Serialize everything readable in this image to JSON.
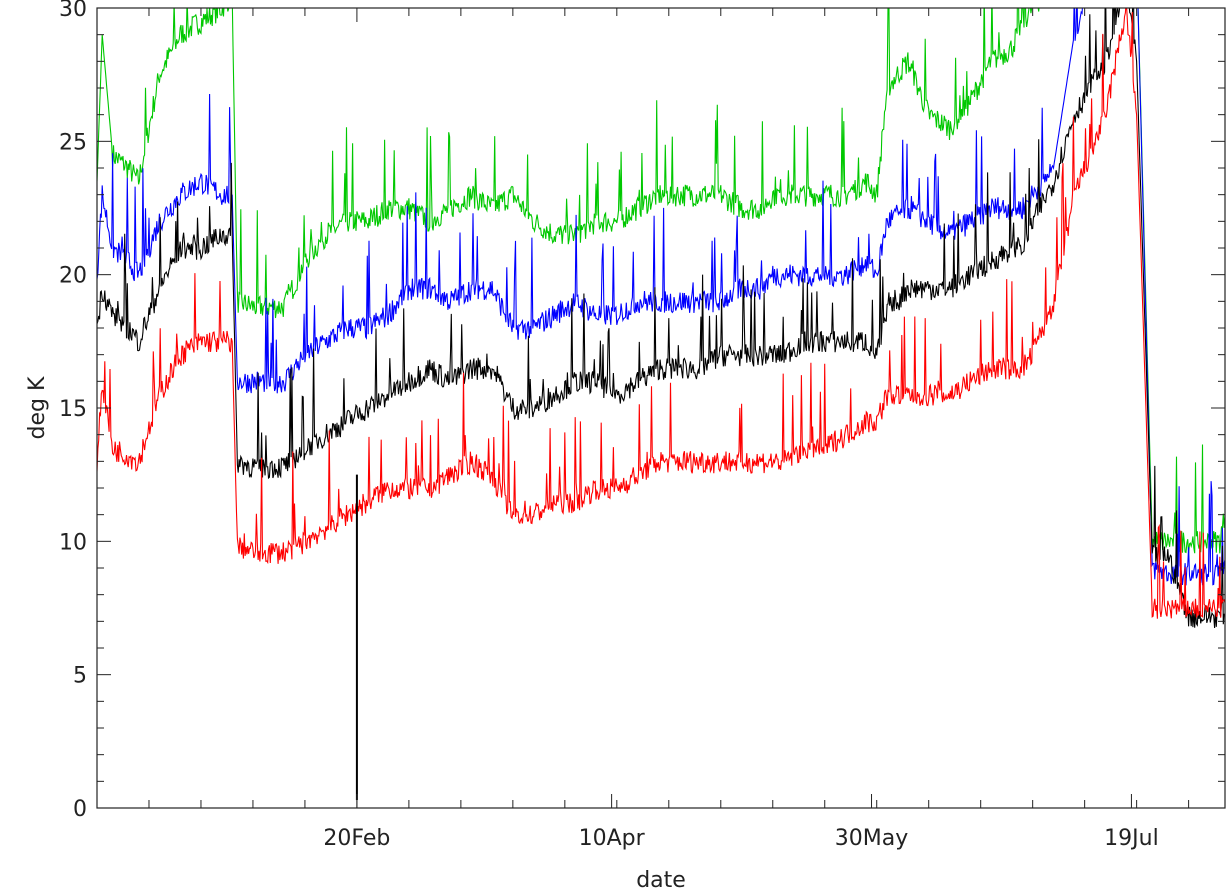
{
  "chart_data": {
    "type": "line",
    "xlabel": "date",
    "ylabel": "deg K",
    "xlim": [
      0,
      217
    ],
    "ylim": [
      0,
      30
    ],
    "y_ticks": [
      0,
      5,
      10,
      15,
      20,
      25,
      30
    ],
    "x_ticks": [
      {
        "x": 50,
        "label": "20Feb"
      },
      {
        "x": 99,
        "label": "10Apr"
      },
      {
        "x": 149,
        "label": "30May"
      },
      {
        "x": 199,
        "label": "19Jul"
      }
    ],
    "grid": false,
    "series": [
      {
        "color": "#00c800",
        "x": [
          0,
          1,
          3,
          6,
          8,
          12,
          16,
          20,
          24,
          26,
          27,
          30,
          33,
          36,
          40,
          44,
          48,
          52,
          56,
          60,
          64,
          68,
          72,
          76,
          80,
          84,
          88,
          92,
          96,
          100,
          104,
          108,
          112,
          116,
          120,
          124,
          128,
          130,
          132,
          136,
          140,
          144,
          148,
          150,
          152,
          156,
          160,
          164,
          168,
          172,
          176,
          178,
          180,
          184,
          188,
          194,
          198,
          200,
          203,
          206,
          210,
          214,
          216,
          217
        ],
        "y": [
          23.5,
          29.0,
          24.5,
          24.0,
          23.5,
          27.5,
          29.0,
          29.5,
          30.0,
          30.5,
          19.0,
          18.8,
          18.8,
          18.8,
          20.5,
          21.5,
          22.0,
          22.0,
          22.5,
          22.5,
          22.0,
          22.5,
          23.0,
          22.5,
          23.0,
          22.0,
          21.5,
          21.5,
          22.0,
          22.0,
          22.5,
          23.0,
          23.0,
          23.0,
          23.0,
          22.5,
          22.5,
          23.0,
          23.0,
          23.0,
          23.0,
          23.0,
          23.5,
          23.0,
          27.0,
          28.0,
          26.0,
          25.5,
          26.5,
          28.0,
          28.5,
          29.5,
          30.0,
          31.0,
          32.0,
          33.0,
          34.0,
          32.0,
          10.0,
          10.0,
          10.0,
          10.0,
          10.0,
          11.0
        ]
      },
      {
        "color": "#0000ff",
        "x": [
          0,
          1,
          3,
          6,
          8,
          12,
          16,
          20,
          24,
          26,
          27,
          30,
          33,
          36,
          40,
          44,
          48,
          52,
          56,
          60,
          64,
          68,
          72,
          76,
          80,
          84,
          88,
          92,
          96,
          100,
          104,
          108,
          112,
          116,
          120,
          124,
          128,
          130,
          132,
          136,
          140,
          144,
          148,
          150,
          152,
          156,
          160,
          164,
          168,
          172,
          176,
          178,
          180,
          184,
          188,
          194,
          198,
          200,
          203,
          206,
          210,
          214,
          216,
          217
        ],
        "y": [
          20.0,
          23.0,
          21.0,
          20.5,
          20.0,
          22.0,
          23.0,
          23.5,
          23.0,
          23.0,
          16.0,
          16.0,
          16.0,
          16.0,
          17.0,
          17.5,
          18.0,
          18.0,
          18.5,
          19.5,
          19.5,
          19.0,
          19.5,
          19.5,
          18.0,
          18.0,
          18.5,
          19.0,
          18.5,
          18.5,
          19.0,
          19.0,
          19.0,
          19.0,
          19.0,
          19.5,
          19.5,
          20.0,
          20.0,
          20.0,
          20.0,
          20.0,
          20.5,
          20.0,
          22.0,
          22.5,
          22.0,
          21.5,
          22.0,
          22.5,
          22.5,
          22.5,
          23.0,
          24.0,
          29.0,
          33.0,
          34.0,
          32.0,
          9.0,
          8.8,
          8.8,
          8.8,
          8.8,
          9.3
        ]
      },
      {
        "color": "#000000",
        "x": [
          0,
          1,
          3,
          6,
          8,
          12,
          16,
          20,
          24,
          26,
          27,
          30,
          33,
          36,
          40,
          44,
          48,
          52,
          56,
          60,
          64,
          68,
          72,
          76,
          80,
          84,
          88,
          92,
          96,
          100,
          104,
          108,
          112,
          116,
          120,
          124,
          128,
          130,
          132,
          136,
          140,
          144,
          148,
          150,
          152,
          156,
          160,
          164,
          168,
          172,
          176,
          178,
          180,
          184,
          188,
          194,
          198,
          200,
          203,
          206,
          210,
          214,
          216,
          217
        ],
        "y": [
          18.0,
          19.5,
          18.5,
          18.0,
          17.5,
          19.5,
          21.0,
          21.0,
          21.5,
          21.5,
          13.0,
          12.8,
          12.8,
          12.8,
          13.5,
          14.0,
          14.5,
          15.0,
          15.5,
          16.0,
          16.5,
          16.0,
          16.5,
          16.5,
          15.0,
          15.0,
          15.5,
          16.0,
          16.0,
          15.5,
          16.0,
          16.5,
          16.5,
          16.5,
          17.0,
          17.0,
          17.0,
          17.0,
          17.0,
          17.5,
          17.5,
          17.5,
          17.5,
          17.0,
          18.5,
          19.5,
          19.5,
          19.5,
          20.0,
          20.5,
          21.0,
          21.0,
          22.0,
          23.5,
          26.0,
          28.0,
          31.0,
          28.0,
          9.5,
          9.5,
          7.2,
          7.2,
          7.2,
          7.2
        ]
      },
      {
        "color": "#ff0000",
        "x": [
          0,
          1,
          3,
          6,
          8,
          12,
          16,
          20,
          24,
          26,
          27,
          30,
          33,
          36,
          40,
          44,
          48,
          52,
          56,
          60,
          64,
          68,
          72,
          76,
          80,
          84,
          88,
          92,
          96,
          100,
          104,
          108,
          112,
          116,
          120,
          124,
          128,
          130,
          132,
          136,
          140,
          144,
          148,
          150,
          152,
          156,
          160,
          164,
          168,
          172,
          176,
          178,
          180,
          184,
          188,
          194,
          198,
          200,
          203,
          206,
          210,
          214,
          216,
          217
        ],
        "y": [
          13.0,
          16.0,
          13.5,
          13.2,
          13.0,
          15.5,
          17.0,
          17.5,
          17.5,
          17.5,
          9.8,
          9.6,
          9.6,
          9.6,
          10.0,
          10.5,
          11.0,
          11.5,
          12.0,
          12.0,
          12.0,
          12.5,
          13.0,
          12.5,
          11.0,
          11.0,
          11.5,
          11.5,
          12.0,
          12.0,
          12.5,
          13.0,
          13.0,
          13.0,
          13.0,
          13.0,
          13.0,
          13.0,
          13.0,
          13.5,
          13.5,
          14.0,
          14.5,
          14.5,
          15.5,
          15.5,
          15.5,
          15.5,
          16.0,
          16.5,
          16.5,
          16.5,
          17.0,
          19.0,
          23.0,
          26.0,
          30.0,
          26.0,
          7.5,
          7.5,
          7.5,
          7.5,
          7.5,
          7.7
        ]
      }
    ],
    "spikes": [
      {
        "x": 50,
        "y_from": 0.3,
        "y_to": 12.5,
        "color": "#000000"
      }
    ]
  }
}
